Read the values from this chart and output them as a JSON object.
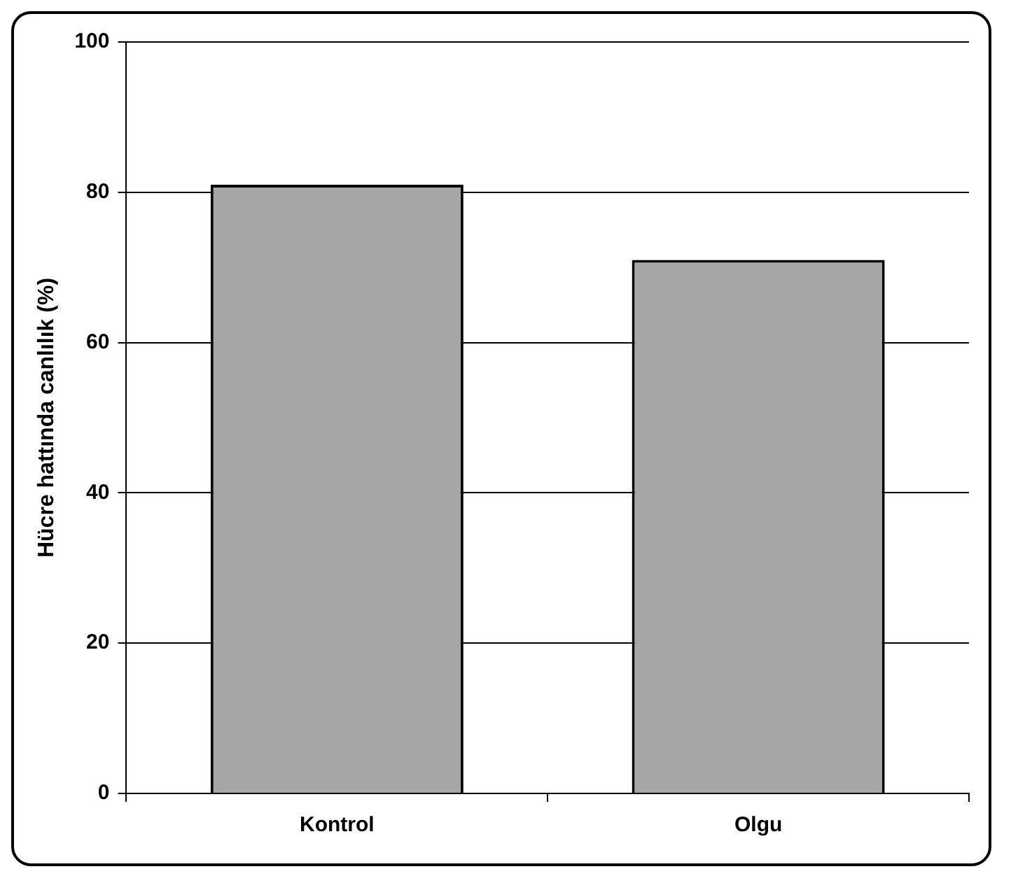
{
  "chart_data": {
    "type": "bar",
    "ylabel": "Hücre hattında canlılık (%)",
    "categories": [
      "Kontrol",
      "Olgu"
    ],
    "values": [
      81,
      71
    ],
    "color": "#a6a6a6",
    "ylim": [
      0,
      100
    ],
    "yticks": [
      0,
      20,
      40,
      60,
      80,
      100
    ],
    "grid": "y"
  }
}
